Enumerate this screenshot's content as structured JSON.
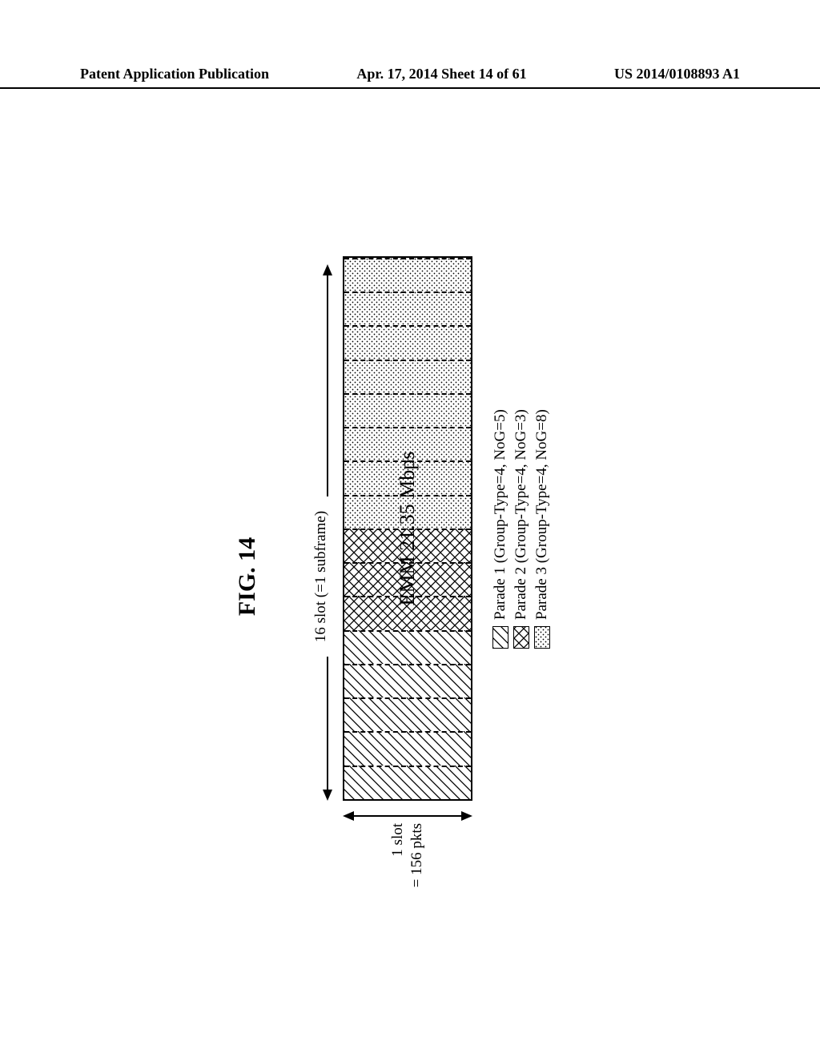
{
  "header": {
    "left": "Patent Application Publication",
    "center": "Apr. 17, 2014  Sheet 14 of 61",
    "right": "US 2014/0108893 A1"
  },
  "figure": {
    "title": "FIG. 14",
    "top_label": "16 slot (=1 subframe)",
    "left_label_line1": "1 slot",
    "left_label_line2": "= 156 pkts",
    "overlay": "EMM 21.35 Mbps",
    "num_slots": 16,
    "slot_patterns": [
      "diag",
      "diag",
      "diag",
      "diag",
      "diag",
      "cross",
      "cross",
      "cross",
      "dots",
      "dots",
      "dots",
      "dots",
      "dots",
      "dots",
      "dots",
      "dots"
    ],
    "slot_border_style": "dashed",
    "overlay_fontsize": 26,
    "label_fontsize": 19,
    "title_fontsize": 30,
    "colors": {
      "background": "#ffffff",
      "stroke": "#000000"
    },
    "legend": [
      {
        "pattern": "diag",
        "text": "Parade 1 (Group-Type=4, NoG=5)"
      },
      {
        "pattern": "cross",
        "text": "Parade 2 (Group-Type=4, NoG=3)"
      },
      {
        "pattern": "dots",
        "text": "Parade 3 (Group-Type=4, NoG=8)"
      }
    ]
  }
}
